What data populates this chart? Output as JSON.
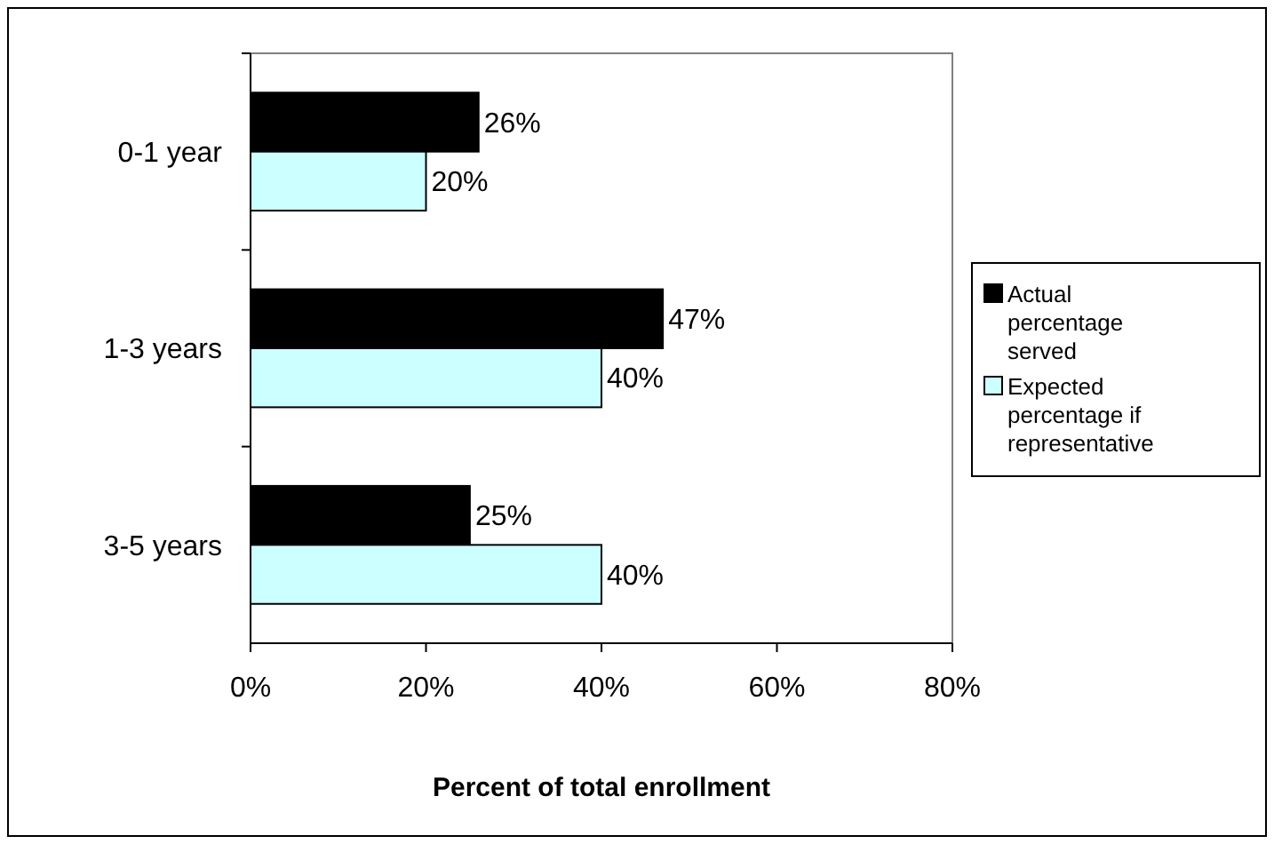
{
  "chart_data": {
    "type": "bar",
    "orientation": "horizontal",
    "categories": [
      "0-1 year",
      "1-3 years",
      "3-5 years"
    ],
    "series": [
      {
        "name": "Actual percentage served",
        "color": "#000000",
        "values": [
          26,
          47,
          25
        ],
        "value_labels": [
          "26%",
          "47%",
          "25%"
        ]
      },
      {
        "name": "Expected percentage if representative",
        "color": "#ccffff",
        "values": [
          20,
          40,
          40
        ],
        "value_labels": [
          "20%",
          "40%",
          "40%"
        ]
      }
    ],
    "xlabel": "Percent of total enrollment",
    "xlim": [
      0,
      80
    ],
    "xticks": [
      {
        "value": 0,
        "label": "0%"
      },
      {
        "value": 20,
        "label": "20%"
      },
      {
        "value": 40,
        "label": "40%"
      },
      {
        "value": 60,
        "label": "60%"
      },
      {
        "value": 80,
        "label": "80%"
      }
    ],
    "grid": false,
    "legend": "right"
  }
}
